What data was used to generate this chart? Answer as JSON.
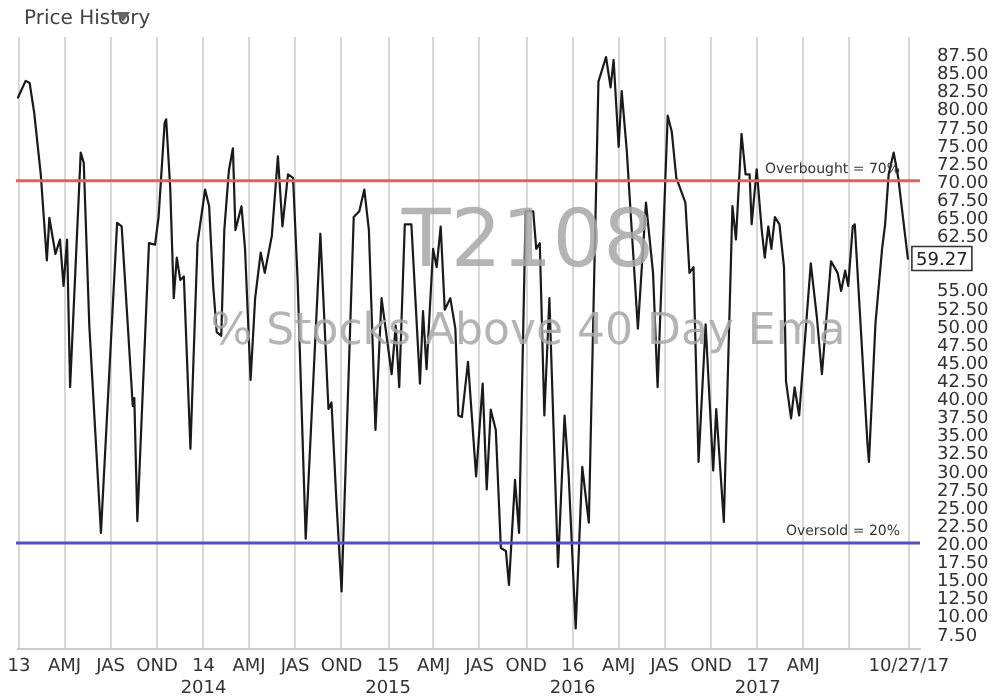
{
  "chart_data": {
    "type": "line",
    "title": "Price History",
    "annotations": [
      "T2108",
      "% Stocks Above 40 Day Ema",
      {
        "text": "59.27",
        "x": "2017-10-27",
        "y": 59.27
      }
    ],
    "x": [
      "2013-01-01",
      "2013-01-16",
      "2013-01-24",
      "2013-02-02",
      "2013-02-15",
      "2013-02-27",
      "2013-03-04",
      "2013-03-16",
      "2013-03-25",
      "2013-04-01",
      "2013-04-08",
      "2013-04-14",
      "2013-05-05",
      "2013-05-11",
      "2013-05-22",
      "2013-06-14",
      "2013-07-16",
      "2013-07-25",
      "2013-08-16",
      "2013-08-19",
      "2013-08-25",
      "2013-09-17",
      "2013-09-29",
      "2013-10-06",
      "2013-10-18",
      "2013-10-21",
      "2013-10-29",
      "2013-11-05",
      "2013-11-11",
      "2013-11-18",
      "2013-11-25",
      "2013-12-08",
      "2013-12-22",
      "2014-01-06",
      "2014-01-14",
      "2014-01-22",
      "2014-01-29",
      "2014-02-07",
      "2014-02-13",
      "2014-02-22",
      "2014-03-02",
      "2014-03-07",
      "2014-03-19",
      "2014-03-26",
      "2014-04-06",
      "2014-04-15",
      "2014-04-26",
      "2014-05-04",
      "2014-05-18",
      "2014-05-30",
      "2014-06-08",
      "2014-06-19",
      "2014-06-29",
      "2014-07-08",
      "2014-07-24",
      "2014-08-22",
      "2014-09-07",
      "2014-09-13",
      "2014-09-23",
      "2014-10-03",
      "2014-10-27",
      "2014-11-07",
      "2014-11-17",
      "2014-11-26",
      "2014-12-09",
      "2014-12-21",
      "2015-01-10",
      "2015-01-18",
      "2015-01-25",
      "2015-02-05",
      "2015-02-18",
      "2015-03-07",
      "2015-03-13",
      "2015-03-20",
      "2015-04-02",
      "2015-04-09",
      "2015-04-17",
      "2015-04-25",
      "2015-05-06",
      "2015-05-16",
      "2015-05-22",
      "2015-05-29",
      "2015-06-10",
      "2015-06-26",
      "2015-07-09",
      "2015-07-17",
      "2015-07-25",
      "2015-08-04",
      "2015-08-14",
      "2015-08-24",
      "2015-08-30",
      "2015-09-11",
      "2015-09-19",
      "2015-10-02",
      "2015-10-17",
      "2015-10-23",
      "2015-10-30",
      "2015-11-08",
      "2015-11-18",
      "2015-12-05",
      "2015-12-18",
      "2015-12-26",
      "2016-01-09",
      "2016-01-22",
      "2016-02-04",
      "2016-02-23",
      "2016-03-09",
      "2016-03-18",
      "2016-03-24",
      "2016-04-03",
      "2016-04-09",
      "2016-04-19",
      "2016-05-11",
      "2016-05-27",
      "2016-06-10",
      "2016-06-19",
      "2016-07-09",
      "2016-07-17",
      "2016-07-26",
      "2016-08-13",
      "2016-08-21",
      "2016-08-29",
      "2016-09-08",
      "2016-09-22",
      "2016-10-07",
      "2016-10-13",
      "2016-10-28",
      "2016-11-14",
      "2016-11-21",
      "2016-12-02",
      "2016-12-10",
      "2016-12-18",
      "2016-12-22",
      "2017-01-01",
      "2017-01-11",
      "2017-01-17",
      "2017-01-24",
      "2017-01-30",
      "2017-02-06",
      "2017-02-15",
      "2017-02-24",
      "2017-02-28",
      "2017-03-10",
      "2017-03-17",
      "2017-03-26",
      "2017-04-18",
      "2017-04-30",
      "2017-05-10",
      "2017-05-28",
      "2017-06-10",
      "2017-06-17",
      "2017-06-25",
      "2017-07-01",
      "2017-07-10",
      "2017-07-14",
      "2017-08-08",
      "2017-08-11",
      "2017-08-24",
      "2017-09-06",
      "2017-09-12",
      "2017-09-19",
      "2017-09-29",
      "2017-10-08",
      "2017-10-27"
    ],
    "series": [
      {
        "color": "#1a1a1a",
        "values": [
          81.5,
          83.8,
          83.5,
          79.4,
          70.9,
          59,
          64.9,
          59.9,
          61.9,
          55.5,
          61.9,
          41.5,
          73.9,
          72.5,
          50,
          21.4,
          64.2,
          63.7,
          38.9,
          40,
          23,
          61.4,
          61.2,
          65,
          78,
          78.5,
          69.1,
          53.8,
          59.4,
          56.3,
          56.8,
          33,
          61.4,
          68.8,
          66.5,
          55.5,
          49.1,
          48.6,
          63.2,
          71.4,
          74.5,
          63.2,
          66.5,
          60.6,
          42.5,
          53.8,
          60.1,
          57.3,
          62.4,
          73.4,
          63.7,
          70.9,
          70.4,
          56.3,
          20.6,
          62.7,
          38.5,
          39.4,
          25.4,
          13.3,
          65,
          65.8,
          68.8,
          63.2,
          35.6,
          53.8,
          43.3,
          50,
          41.5,
          64,
          64,
          42,
          52,
          44,
          60.6,
          58.1,
          63.7,
          52.2,
          53.8,
          49.6,
          37.6,
          37.4,
          45,
          29.2,
          42,
          27.4,
          38.4,
          35.6,
          19.3,
          18.9,
          14.2,
          28.7,
          21.4,
          65.8,
          65.8,
          60.6,
          61.4,
          37.6,
          53.8,
          16.7,
          37.6,
          29.5,
          8.2,
          30.5,
          22.8,
          83.7,
          87.1,
          82.9,
          86.7,
          74.7,
          82.4,
          74.2,
          49.6,
          67,
          57.3,
          41.5,
          79,
          76.8,
          70.4,
          67,
          57.3,
          58.1,
          31.2,
          50.2,
          30,
          38.5,
          22.9,
          66.5,
          61.9,
          76.5,
          70.9,
          70.9,
          64,
          71.6,
          63.2,
          59.4,
          63.7,
          60.6,
          65,
          64,
          58.1,
          42.3,
          37.2,
          41.5,
          37.6,
          58.6,
          51.2,
          43.3,
          58.9,
          57.3,
          54.8,
          57.6,
          55.5,
          63.7,
          64,
          33.8,
          31.2,
          50.4,
          60.6,
          64,
          70.9,
          73.9,
          70.4,
          59.27
        ]
      }
    ],
    "xlim": [
      "2012-12-28",
      "2017-11-20"
    ],
    "xticks": [
      {
        "value": "2013-01-01",
        "label": "13"
      },
      {
        "value": "2013-04-01",
        "label": "AMJ"
      },
      {
        "value": "2013-07-01",
        "label": "JAS"
      },
      {
        "value": "2013-10-01",
        "label": "OND"
      },
      {
        "value": "2014-01-01",
        "label": "14\n2014"
      },
      {
        "value": "2014-04-01",
        "label": "AMJ"
      },
      {
        "value": "2014-07-01",
        "label": "JAS"
      },
      {
        "value": "2014-10-01",
        "label": "OND"
      },
      {
        "value": "2015-01-01",
        "label": "15\n2015"
      },
      {
        "value": "2015-04-01",
        "label": "AMJ"
      },
      {
        "value": "2015-07-01",
        "label": "JAS"
      },
      {
        "value": "2015-10-01",
        "label": "OND"
      },
      {
        "value": "2016-01-01",
        "label": "16\n2016"
      },
      {
        "value": "2016-04-01",
        "label": "AMJ"
      },
      {
        "value": "2016-07-01",
        "label": "JAS"
      },
      {
        "value": "2016-10-01",
        "label": "OND"
      },
      {
        "value": "2017-01-01",
        "label": "17\n2017"
      },
      {
        "value": "2017-04-01",
        "label": "AMJ"
      },
      {
        "value": "2017-07-01",
        "label": null
      },
      {
        "value": "2017-10-27",
        "label": "10/27/17"
      }
    ],
    "ylim": [
      5.5,
      90
    ],
    "yticks": [
      {
        "value": 7.5,
        "label": "7.50"
      },
      {
        "value": 10,
        "label": "10.00"
      },
      {
        "value": 12.5,
        "label": "12.50"
      },
      {
        "value": 15,
        "label": "15.00"
      },
      {
        "value": 17.5,
        "label": "17.50"
      },
      {
        "value": 20,
        "label": "20.00"
      },
      {
        "value": 22.5,
        "label": "22.50"
      },
      {
        "value": 25,
        "label": "25.00"
      },
      {
        "value": 27.5,
        "label": "27.50"
      },
      {
        "value": 30,
        "label": "30.00"
      },
      {
        "value": 32.5,
        "label": "32.50"
      },
      {
        "value": 35,
        "label": "35.00"
      },
      {
        "value": 37.5,
        "label": "37.50"
      },
      {
        "value": 40,
        "label": "40.00"
      },
      {
        "value": 42.5,
        "label": "42.50"
      },
      {
        "value": 45,
        "label": "45.00"
      },
      {
        "value": 47.5,
        "label": "47.50"
      },
      {
        "value": 50,
        "label": "50.00"
      },
      {
        "value": 52.5,
        "label": "52.50"
      },
      {
        "value": 55,
        "label": "55.00"
      },
      {
        "value": 62.5,
        "label": "62.50"
      },
      {
        "value": 65,
        "label": "65.00"
      },
      {
        "value": 67.5,
        "label": "67.50"
      },
      {
        "value": 70,
        "label": "70.00"
      },
      {
        "value": 72.5,
        "label": "72.50"
      },
      {
        "value": 75,
        "label": "75.00"
      },
      {
        "value": 77.5,
        "label": "77.50"
      },
      {
        "value": 80,
        "label": "80.00"
      },
      {
        "value": 82.5,
        "label": "82.50"
      },
      {
        "value": 85,
        "label": "85.00"
      },
      {
        "value": 87.5,
        "label": "87.50"
      }
    ],
    "ref_lines": [
      {
        "axis": "y",
        "value": 70,
        "label": "Overbought = 70%",
        "color": "#e06060"
      },
      {
        "axis": "y",
        "value": 20,
        "label": "Oversold = 20%",
        "color": "#5050c8"
      }
    ],
    "grid": "x",
    "marker": "none",
    "line_style": "solid"
  }
}
